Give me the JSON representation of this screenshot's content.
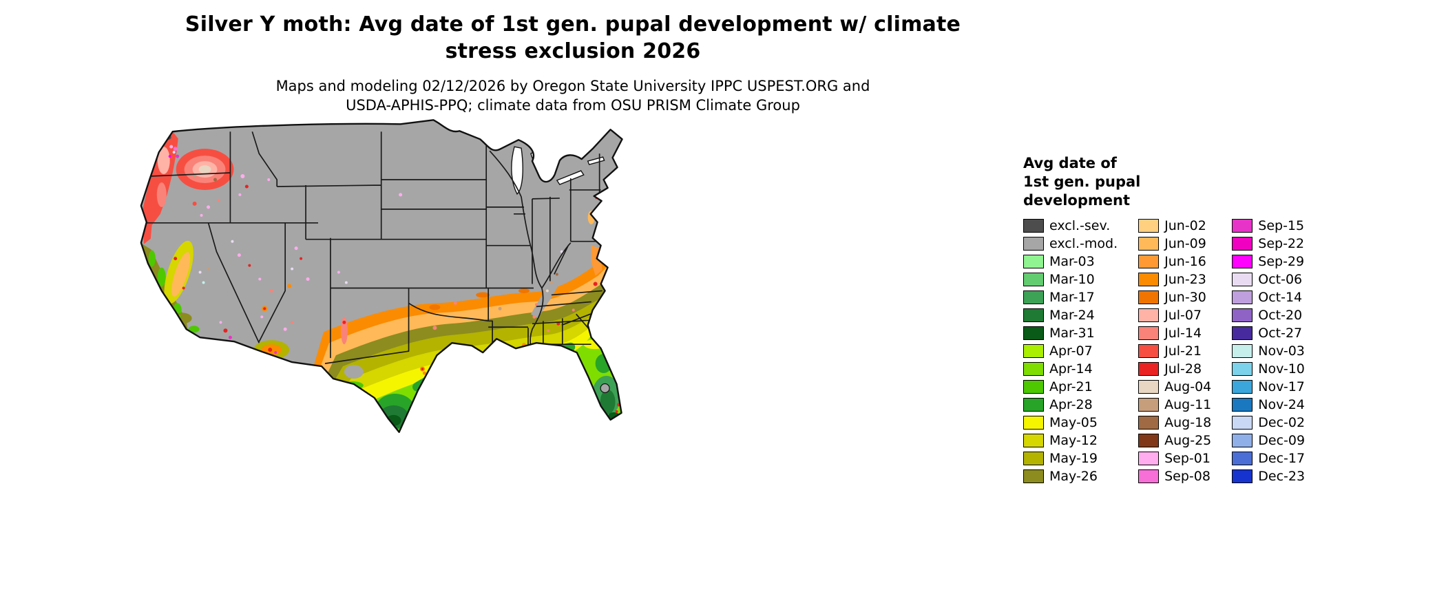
{
  "title": {
    "line1": "Silver Y moth: Avg date of 1st gen. pupal development w/ climate",
    "line2": "stress exclusion 2026"
  },
  "subtitle": {
    "line1": "Maps and modeling 02/12/2026 by Oregon State University IPPC USPEST.ORG and",
    "line2": "USDA-APHIS-PPQ; climate data from OSU PRISM Climate Group"
  },
  "legend": {
    "title_lines": [
      "Avg date of",
      "1st gen. pupal",
      "development"
    ],
    "columns": [
      [
        {
          "label": "excl.-sev.",
          "color": "#4d4d4d"
        },
        {
          "label": "excl.-mod.",
          "color": "#a6a6a6"
        },
        {
          "label": "Mar-03",
          "color": "#90f590"
        },
        {
          "label": "Mar-10",
          "color": "#63cc70"
        },
        {
          "label": "Mar-17",
          "color": "#3da256"
        },
        {
          "label": "Mar-24",
          "color": "#1f7a33"
        },
        {
          "label": "Mar-31",
          "color": "#0a5a18"
        },
        {
          "label": "Apr-07",
          "color": "#aaee00"
        },
        {
          "label": "Apr-14",
          "color": "#7fdd00"
        },
        {
          "label": "Apr-21",
          "color": "#4ec800"
        },
        {
          "label": "Apr-28",
          "color": "#28a428"
        },
        {
          "label": "May-05",
          "color": "#f5f500"
        },
        {
          "label": "May-12",
          "color": "#d6d600"
        },
        {
          "label": "May-19",
          "color": "#b3b300"
        },
        {
          "label": "May-26",
          "color": "#8c8c1f"
        }
      ],
      [
        {
          "label": "Jun-02",
          "color": "#ffd080"
        },
        {
          "label": "Jun-09",
          "color": "#ffb959"
        },
        {
          "label": "Jun-16",
          "color": "#ff9933"
        },
        {
          "label": "Jun-23",
          "color": "#fb8b00"
        },
        {
          "label": "Jun-30",
          "color": "#ef7500"
        },
        {
          "label": "Jul-07",
          "color": "#ffb3a7"
        },
        {
          "label": "Jul-14",
          "color": "#f98379"
        },
        {
          "label": "Jul-21",
          "color": "#f74e42"
        },
        {
          "label": "Jul-28",
          "color": "#ea2222"
        },
        {
          "label": "Aug-04",
          "color": "#e9d6c3"
        },
        {
          "label": "Aug-11",
          "color": "#c79e7b"
        },
        {
          "label": "Aug-18",
          "color": "#a06a44"
        },
        {
          "label": "Aug-25",
          "color": "#803818"
        },
        {
          "label": "Sep-01",
          "color": "#ffadee"
        },
        {
          "label": "Sep-08",
          "color": "#f86fd8"
        }
      ],
      [
        {
          "label": "Sep-15",
          "color": "#e833c8"
        },
        {
          "label": "Sep-22",
          "color": "#f000c0"
        },
        {
          "label": "Sep-29",
          "color": "#ff00ff"
        },
        {
          "label": "Oct-06",
          "color": "#e9dcf2"
        },
        {
          "label": "Oct-14",
          "color": "#bf9fdd"
        },
        {
          "label": "Oct-20",
          "color": "#8f63c6"
        },
        {
          "label": "Oct-27",
          "color": "#472b9e"
        },
        {
          "label": "Nov-03",
          "color": "#c6efec"
        },
        {
          "label": "Nov-10",
          "color": "#7cd2ea"
        },
        {
          "label": "Nov-17",
          "color": "#3ba6db"
        },
        {
          "label": "Nov-24",
          "color": "#1a78c0"
        },
        {
          "label": "Dec-02",
          "color": "#c9d8f4"
        },
        {
          "label": "Dec-09",
          "color": "#8fafe9"
        },
        {
          "label": "Dec-17",
          "color": "#4a6ed6"
        },
        {
          "label": "Dec-23",
          "color": "#1733cf"
        }
      ]
    ]
  }
}
